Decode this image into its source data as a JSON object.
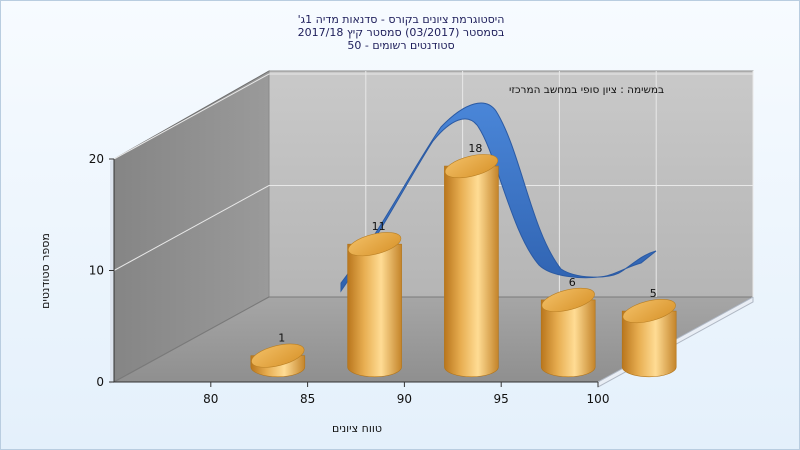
{
  "chart_data": {
    "type": "bar",
    "title": [
      "היסטוגרמת ציונים בקורס - סדנאות מדיה 1ג'",
      "בסמסטר  (03/2017)  סמסטר קיץ  2017/18",
      "סטודנטים רשומים - 50"
    ],
    "annotation": "במשימה : ציון סופי במחשב המרכזי",
    "xlabel": "טווח ציונים",
    "ylabel": "מספר סטודנטים",
    "x_ticks": [
      80,
      85,
      90,
      95,
      100
    ],
    "y_ticks": [
      0,
      10,
      20
    ],
    "ylim": [
      0,
      20
    ],
    "xlim": [
      75,
      100
    ],
    "grid": true,
    "categories": [
      "80-85",
      "85-90",
      "90-95",
      "95-100",
      "100"
    ],
    "values": [
      1,
      11,
      18,
      6,
      5
    ],
    "curve": {
      "type": "normal-distribution",
      "color": "#3a72c6"
    },
    "colors": {
      "bar": "#e2a33e",
      "curve": "#3a72c6",
      "back_wall": "#c0c0c0",
      "left_wall": "#8e8e8e",
      "floor": "#9c9c9c"
    }
  }
}
